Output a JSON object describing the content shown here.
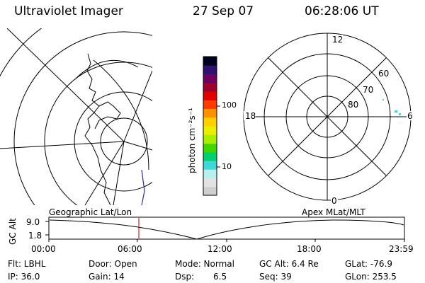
{
  "header": {
    "title": "Ultraviolet Imager",
    "date": "27 Sep 07",
    "time": "06:28:06 UT"
  },
  "colorbar": {
    "unit_label": "photon cm⁻²s⁻¹",
    "tick_100": "100",
    "tick_10": "10",
    "colors": [
      "#cfcfcf",
      "#e2e2e2",
      "#b8f0f0",
      "#3ed8d8",
      "#00d070",
      "#40d800",
      "#a8f000",
      "#e8f000",
      "#ffd000",
      "#ff9000",
      "#ff3a00",
      "#e00000",
      "#a00030",
      "#700060",
      "#301070",
      "#000020"
    ]
  },
  "polar": {
    "mlt_12": "12",
    "mlt_18": "18",
    "mlt_6": "6",
    "mlt_0": "0",
    "lat_60": "60",
    "lat_70": "70",
    "lat_80": "80"
  },
  "timeline": {
    "axis_label": "GC Alt",
    "left_label": "Geographic Lat/Lon",
    "right_label": "Apex MLat/MLT",
    "y_top": "9.0",
    "y_bottom": "1.8",
    "ticks": [
      "00:00",
      "06:00",
      "12:00",
      "18:00",
      "23:59"
    ],
    "marker_color": "#c00000"
  },
  "info": {
    "flt": "Flt: LBHL",
    "ip": "IP: 36.0",
    "door": "Door: Open",
    "gain": "Gain: 14",
    "mode": "Mode: Normal",
    "dsp_label": "Dsp:",
    "dsp_value": "6.5",
    "gc_alt": "GC Alt: 6.4 Re",
    "seq": "Seq: 39",
    "glat": "GLat: -76.9",
    "glon": "GLon: 253.5"
  }
}
